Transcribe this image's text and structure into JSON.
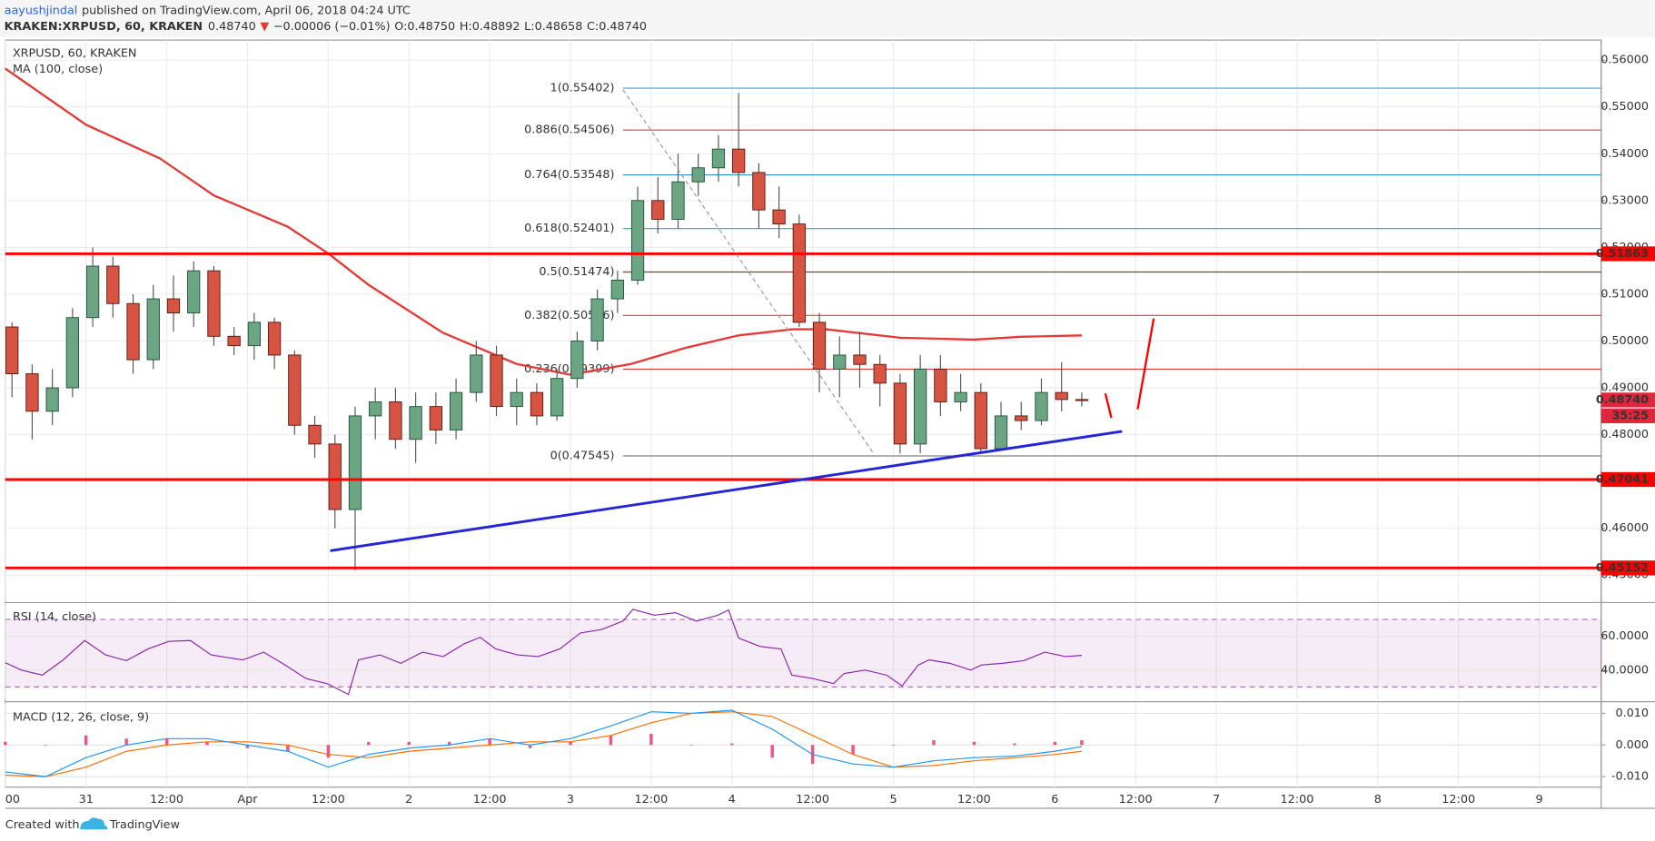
{
  "header": {
    "author": "aayushjindal",
    "published": "published on TradingView.com, April 06, 2018 04:24 UTC",
    "symbol": "KRAKEN:XRPUSD, 60, KRAKEN",
    "last": "0.48740",
    "arrow": "▼",
    "change": "−0.00006 (−0.01%)",
    "open": "O:0.48750",
    "high": "H:0.48892",
    "low": "L:0.48658",
    "close": "C:0.48740"
  },
  "chart_data": [
    {
      "type": "candlestick",
      "title": "XRPUSD, 60, KRAKEN",
      "xlim": [
        0,
        237.2
      ],
      "ylim": [
        0.44436,
        0.56428
      ],
      "xticks": [
        {
          "value": 0,
          "label": "00"
        },
        {
          "value": 12,
          "label": "31"
        },
        {
          "value": 24,
          "label": "12:00"
        },
        {
          "value": 36,
          "label": "Apr"
        },
        {
          "value": 48,
          "label": "12:00"
        },
        {
          "value": 60,
          "label": "2"
        },
        {
          "value": 72,
          "label": "12:00"
        },
        {
          "value": 84,
          "label": "3"
        },
        {
          "value": 96,
          "label": "12:00"
        },
        {
          "value": 108,
          "label": "4"
        },
        {
          "value": 120,
          "label": "12:00"
        },
        {
          "value": 132,
          "label": "5"
        },
        {
          "value": 144,
          "label": "12:00"
        },
        {
          "value": 156,
          "label": "6"
        },
        {
          "value": 168,
          "label": "12:00"
        },
        {
          "value": 180,
          "label": "7"
        },
        {
          "value": 192,
          "label": "12:00"
        },
        {
          "value": 204,
          "label": "8"
        },
        {
          "value": 216,
          "label": "12:00"
        },
        {
          "value": 228,
          "label": "9"
        }
      ],
      "yticks": [
        {
          "value": 0.45,
          "label": "0.45000"
        },
        {
          "value": 0.46,
          "label": "0.46000"
        },
        {
          "value": 0.47,
          "label": "0.47000"
        },
        {
          "value": 0.48,
          "label": "0.48000"
        },
        {
          "value": 0.49,
          "label": "0.49000"
        },
        {
          "value": 0.5,
          "label": "0.50000"
        },
        {
          "value": 0.51,
          "label": "0.51000"
        },
        {
          "value": 0.52,
          "label": "0.52000"
        },
        {
          "value": 0.53,
          "label": "0.53000"
        },
        {
          "value": 0.54,
          "label": "0.54000"
        },
        {
          "value": 0.55,
          "label": "0.55000"
        },
        {
          "value": 0.56,
          "label": "0.56000"
        }
      ],
      "grid": true,
      "up_color": "#6ba583",
      "down_color": "#d75442",
      "candles": {
        "x": [
          1,
          4,
          7,
          10,
          13,
          16,
          19,
          22,
          25,
          28,
          31,
          34,
          37,
          40,
          43,
          46,
          49,
          52,
          55,
          58,
          61,
          64,
          67,
          70,
          73,
          76,
          79,
          82,
          85,
          88,
          91,
          94,
          97,
          100,
          103,
          106,
          109,
          112,
          115,
          118,
          121,
          124,
          127,
          130,
          133,
          136,
          139,
          142,
          145,
          148,
          151,
          154,
          157,
          160
        ],
        "open": [
          0.503,
          0.493,
          0.485,
          0.49,
          0.505,
          0.516,
          0.508,
          0.496,
          0.509,
          0.506,
          0.515,
          0.501,
          0.499,
          0.504,
          0.497,
          0.482,
          0.478,
          0.464,
          0.484,
          0.487,
          0.479,
          0.486,
          0.481,
          0.489,
          0.497,
          0.486,
          0.489,
          0.484,
          0.492,
          0.5,
          0.509,
          0.513,
          0.53,
          0.526,
          0.534,
          0.537,
          0.541,
          0.536,
          0.528,
          0.525,
          0.504,
          0.494,
          0.497,
          0.495,
          0.491,
          0.478,
          0.494,
          0.487,
          0.489,
          0.477,
          0.484,
          0.483,
          0.489,
          0.4875
        ],
        "high": [
          0.504,
          0.495,
          0.494,
          0.507,
          0.52,
          0.518,
          0.51,
          0.512,
          0.514,
          0.517,
          0.516,
          0.503,
          0.506,
          0.505,
          0.498,
          0.484,
          0.48,
          0.486,
          0.49,
          0.49,
          0.489,
          0.489,
          0.492,
          0.5,
          0.499,
          0.492,
          0.491,
          0.494,
          0.502,
          0.511,
          0.515,
          0.533,
          0.535,
          0.54,
          0.54,
          0.544,
          0.553,
          0.538,
          0.533,
          0.527,
          0.506,
          0.501,
          0.502,
          0.497,
          0.493,
          0.497,
          0.497,
          0.493,
          0.491,
          0.487,
          0.487,
          0.492,
          0.4955,
          0.489
        ],
        "low": [
          0.488,
          0.479,
          0.482,
          0.488,
          0.503,
          0.505,
          0.493,
          0.494,
          0.502,
          0.503,
          0.499,
          0.497,
          0.496,
          0.494,
          0.48,
          0.475,
          0.46,
          0.451,
          0.479,
          0.477,
          0.474,
          0.478,
          0.479,
          0.487,
          0.484,
          0.482,
          0.482,
          0.483,
          0.49,
          0.498,
          0.506,
          0.512,
          0.523,
          0.524,
          0.531,
          0.534,
          0.533,
          0.524,
          0.522,
          0.503,
          0.489,
          0.488,
          0.49,
          0.486,
          0.476,
          0.476,
          0.484,
          0.485,
          0.476,
          0.479,
          0.481,
          0.482,
          0.485,
          0.486
        ],
        "close": [
          0.493,
          0.485,
          0.49,
          0.505,
          0.516,
          0.508,
          0.496,
          0.509,
          0.506,
          0.515,
          0.501,
          0.499,
          0.504,
          0.497,
          0.482,
          0.478,
          0.464,
          0.484,
          0.487,
          0.479,
          0.486,
          0.481,
          0.489,
          0.497,
          0.486,
          0.489,
          0.484,
          0.492,
          0.5,
          0.509,
          0.513,
          0.53,
          0.526,
          0.534,
          0.537,
          0.541,
          0.536,
          0.528,
          0.525,
          0.504,
          0.494,
          0.497,
          0.495,
          0.491,
          0.478,
          0.494,
          0.487,
          0.489,
          0.477,
          0.484,
          0.483,
          0.489,
          0.4875,
          0.4874
        ]
      },
      "indicators": [
        {
          "name": "MA (100, close)",
          "color": "#e53935",
          "x": [
            0,
            12,
            23,
            31,
            42,
            48,
            54,
            65,
            76,
            84,
            93,
            101,
            109,
            117,
            122,
            133,
            144,
            151,
            160
          ],
          "values": [
            0.5582,
            0.5462,
            0.539,
            0.5311,
            0.5244,
            0.5187,
            0.512,
            0.5018,
            0.4951,
            0.4928,
            0.4951,
            0.4985,
            0.5012,
            0.5025,
            0.5025,
            0.5007,
            0.5003,
            0.5009,
            0.5012
          ]
        }
      ],
      "hlines": [
        {
          "value": 0.51863,
          "label": "0.51863",
          "color": "#ff0000"
        },
        {
          "value": 0.47041,
          "label": "0.47041",
          "color": "#ff0000"
        },
        {
          "value": 0.45152,
          "label": "0.45152",
          "color": "#ff0000"
        }
      ],
      "last_price": {
        "value": 0.4874,
        "label": "0.48740",
        "countdown": "35:25",
        "color": "#e0263a"
      },
      "fib": {
        "start": 91.8,
        "levels": [
          {
            "label": "1(0.55402)",
            "value": 0.55402,
            "color": "#4a9ed0"
          },
          {
            "label": "0.886(0.54506)",
            "value": 0.54506,
            "color": "#e53935"
          },
          {
            "label": "0.764(0.53548)",
            "value": 0.53548,
            "color": "#2b8fd0"
          },
          {
            "label": "0.618(0.52401)",
            "value": 0.52401,
            "color": "#36a88c"
          },
          {
            "label": "0.5(0.51474)",
            "value": 0.51474,
            "color": "#8b3a3a"
          },
          {
            "label": "0.382(0.50546)",
            "value": 0.50546,
            "color": "#e53935"
          },
          {
            "label": "0.236(0.49399)",
            "value": 0.49399,
            "color": "#e53935"
          },
          {
            "label": "0(0.47545)",
            "value": 0.47545,
            "color": "#808080"
          }
        ]
      },
      "drawings": [
        {
          "color": "#2424d8",
          "width": 2.5,
          "dash": false,
          "x": [
            48.3,
            166
          ],
          "y": [
            0.4552,
            0.4807
          ]
        },
        {
          "color": "#999999",
          "width": 1,
          "dash": true,
          "x": [
            91.8,
            129.1
          ],
          "y": [
            0.55369,
            0.4759
          ]
        },
        {
          "color": "#ff0000",
          "width": 2,
          "dash": false,
          "x": [
            163.5,
            164.4
          ],
          "y": [
            0.4888,
            0.4836
          ]
        },
        {
          "color": "#ff0000",
          "width": 2,
          "dash": false,
          "x": [
            168.3,
            170.7
          ],
          "y": [
            0.4854,
            0.5048
          ]
        }
      ]
    },
    {
      "type": "line",
      "title": "RSI (14, close)",
      "xlim": [
        0,
        237.2
      ],
      "ylim": [
        22.5,
        79.4
      ],
      "yticks": [
        {
          "value": 40,
          "label": "40.0000"
        },
        {
          "value": 60,
          "label": "60.0000"
        }
      ],
      "bands": [
        30,
        70
      ],
      "color": "#8e24aa",
      "x": [
        0,
        2.4,
        5.5,
        8.6,
        11.8,
        14.9,
        18,
        21.2,
        24.3,
        27.5,
        30.6,
        35.3,
        38.4,
        41.6,
        44.7,
        47.8,
        51,
        52.5,
        55.7,
        58.8,
        62,
        65.1,
        68.2,
        70.6,
        72.9,
        76.1,
        79.2,
        82.4,
        85.5,
        88.6,
        91.8,
        93.3,
        96.5,
        99.6,
        102.7,
        105.9,
        107.5,
        109,
        112.2,
        115.3,
        116.9,
        120,
        123.1,
        124.7,
        127.8,
        131,
        133.3,
        135.7,
        137.3,
        140.4,
        143.5,
        145.1,
        148.2,
        151.4,
        154.5,
        157.6,
        160
      ],
      "values": [
        44.4,
        40,
        37,
        46,
        57.5,
        49,
        45.6,
        52.5,
        57,
        57.5,
        49,
        46,
        50.6,
        43,
        35,
        32,
        25.6,
        46,
        49,
        44,
        50.6,
        48,
        55.6,
        59.4,
        52.5,
        49,
        48,
        52.5,
        62,
        64,
        69,
        76,
        72.5,
        74,
        69,
        72.5,
        75.6,
        59,
        54,
        52.5,
        37,
        35,
        32,
        38,
        40,
        37,
        30.6,
        43,
        46,
        44,
        40,
        43,
        44,
        45.6,
        50.6,
        48,
        48.7
      ]
    },
    {
      "type": "macd",
      "title": "MACD (12, 26, close, 9)",
      "xlim": [
        0,
        237.2
      ],
      "ylim": [
        -0.01333,
        0.01333
      ],
      "yticks": [
        {
          "value": -0.01,
          "label": "-0.010"
        },
        {
          "value": 0,
          "label": "0.000"
        },
        {
          "value": 0.01,
          "label": "0.010"
        }
      ],
      "x": [
        0,
        6,
        12,
        18,
        24,
        30,
        36,
        42,
        48,
        54,
        60,
        66,
        72,
        78,
        84,
        90,
        96,
        102,
        108,
        114,
        120,
        126,
        132,
        138,
        144,
        150,
        156,
        160
      ],
      "macd": {
        "color": "#2196f3",
        "values": [
          -0.0085,
          -0.01,
          -0.004,
          0,
          0.002,
          0.002,
          0,
          -0.002,
          -0.007,
          -0.003,
          -0.001,
          0,
          0.002,
          0,
          0.002,
          0.006,
          0.0105,
          0.01,
          0.011,
          0.005,
          -0.003,
          -0.006,
          -0.007,
          -0.005,
          -0.004,
          -0.0035,
          -0.002,
          -0.0005
        ]
      },
      "signal": {
        "color": "#ff6d00",
        "values": [
          -0.0095,
          -0.01,
          -0.007,
          -0.002,
          0,
          0.001,
          0.001,
          0,
          -0.003,
          -0.004,
          -0.002,
          -0.001,
          0,
          0.001,
          0.001,
          0.003,
          0.007,
          0.01,
          0.0105,
          0.009,
          0.003,
          -0.003,
          -0.007,
          -0.0065,
          -0.005,
          -0.004,
          -0.003,
          -0.002
        ]
      },
      "histogram": {
        "color": "#e91e63",
        "values": [
          0.001,
          0,
          0.003,
          0.002,
          0.002,
          0.001,
          -0.001,
          -0.002,
          -0.004,
          0.001,
          0.001,
          0.001,
          0.002,
          -0.001,
          0.001,
          0.003,
          0.0035,
          0,
          0.0005,
          -0.004,
          -0.006,
          -0.003,
          0,
          0.0015,
          0.001,
          0.0005,
          0.001,
          0.0015
        ]
      }
    }
  ],
  "footer": {
    "created": "Created with",
    "brand": "TradingView"
  }
}
